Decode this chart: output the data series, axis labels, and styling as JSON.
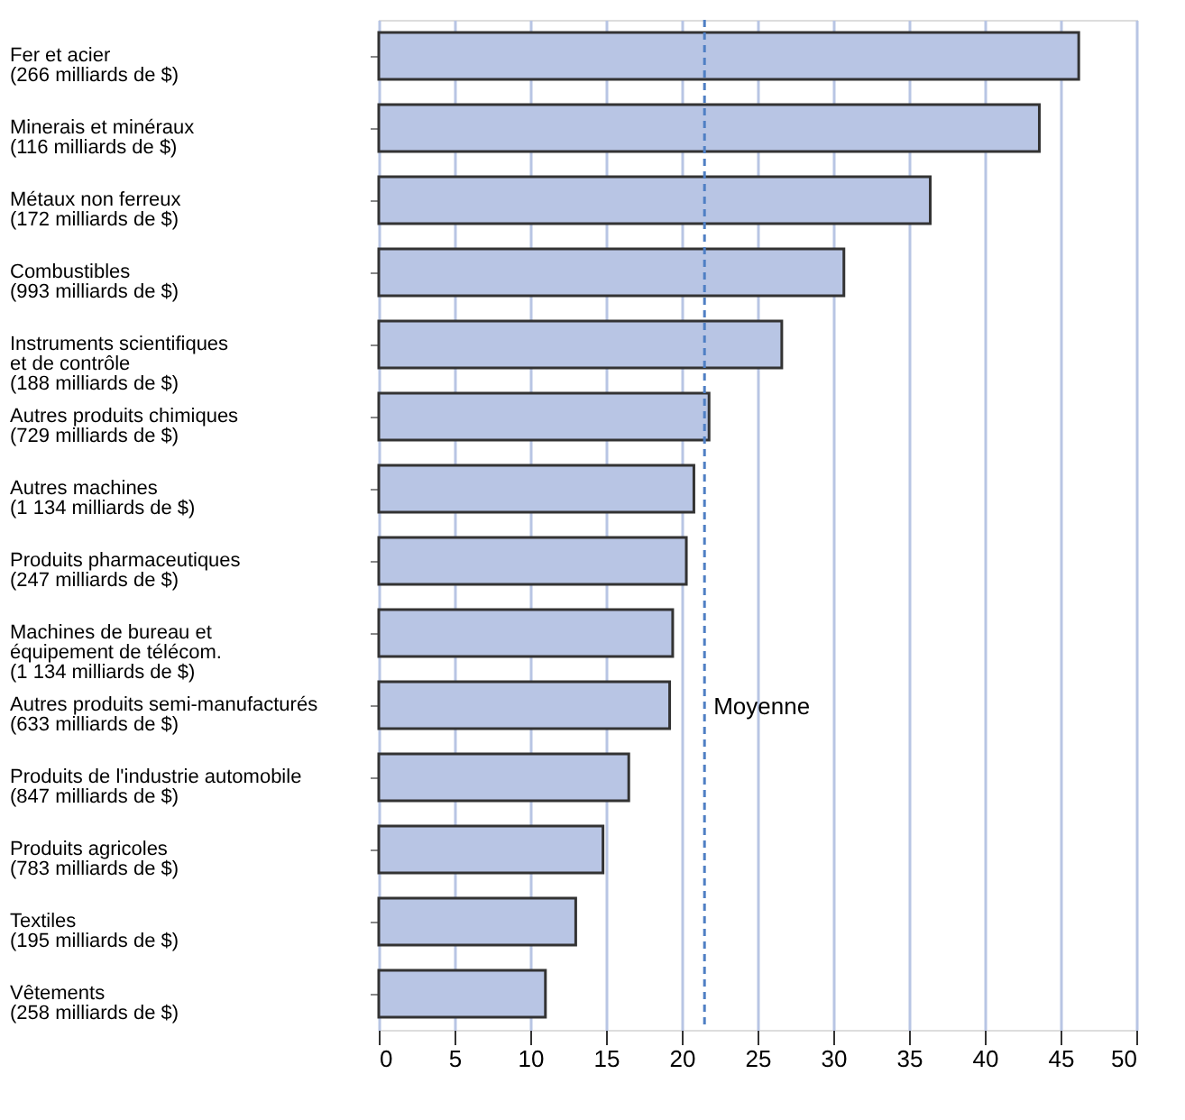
{
  "chart_data": {
    "type": "bar",
    "orientation": "horizontal",
    "categories": [
      "Fer et acier\n(266 milliards de $)",
      "Minerais et minéraux\n(116 milliards de $)",
      "Métaux non ferreux\n(172 milliards de $)",
      "Combustibles\n(993 milliards de $)",
      "Instruments scientifiques\net de contrôle\n(188 milliards de $)",
      "Autres produits chimiques\n(729 milliards de $)",
      "Autres machines\n(1 134 milliards de $)",
      "Produits pharmaceutiques\n(247 milliards de $)",
      "Machines de bureau et\néquipement de télécom.\n(1 134 milliards de $)",
      "Autres produits semi-manufacturés\n(633 milliards de $)",
      "Produits de l'industrie automobile\n(847 milliards de $)",
      "Produits agricoles\n(783 milliards de $)",
      "Textiles\n(195 milliards de $)",
      "Vêtements\n(258 milliards de $)"
    ],
    "values": [
      46.2,
      43.6,
      36.4,
      30.7,
      26.6,
      21.8,
      20.8,
      20.3,
      19.4,
      19.2,
      16.5,
      14.8,
      13.0,
      11.0
    ],
    "color": "#b8c5e4",
    "xlim": [
      0,
      50
    ],
    "xticks": [
      0,
      5,
      10,
      15,
      20,
      25,
      30,
      35,
      40,
      45,
      50
    ],
    "grid": "x",
    "ref_lines": [
      {
        "axis": "x",
        "value": 21.5,
        "label": "Moyenne",
        "color": "#4f7fc4",
        "line_style": "dashed"
      }
    ]
  }
}
